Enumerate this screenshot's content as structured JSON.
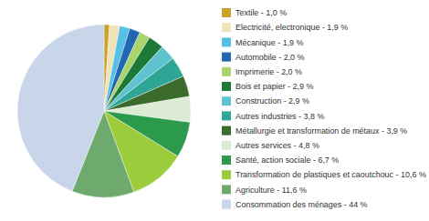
{
  "chart_data": {
    "type": "pie",
    "categories": [
      "Textile - 1,0 %",
      "Electricité, electronique - 1,9 %",
      "Mécanique - 1,9 %",
      "Automobile - 2,0 %",
      "Imprimerie - 2,0 %",
      "Bois et papier - 2,9 %",
      "Construction - 2,9 %",
      "Autres industries - 3,8 %",
      "Métallurgie et transformation de métaux - 3,9 %",
      "Autres services - 4,8 %",
      "Santé, action sociale - 6,7 %",
      "Transformation de plastiques et caoutchouc - 10,6 %",
      "Agriculture - 11,6 %",
      "Consommation des ménages - 44 %"
    ],
    "values": [
      1.0,
      1.9,
      1.9,
      2.0,
      2.0,
      2.9,
      2.9,
      3.8,
      3.9,
      4.8,
      6.7,
      10.6,
      11.6,
      44
    ],
    "colors": [
      "#c9a227",
      "#f1e3b8",
      "#56c1e4",
      "#2167b1",
      "#a9d46c",
      "#1d7a36",
      "#5fc3cf",
      "#2fa596",
      "#3b6a2d",
      "#dcebd3",
      "#2b9a4c",
      "#9ccb3b",
      "#6ea96e",
      "#c9d6ea"
    ],
    "legend": "right"
  }
}
